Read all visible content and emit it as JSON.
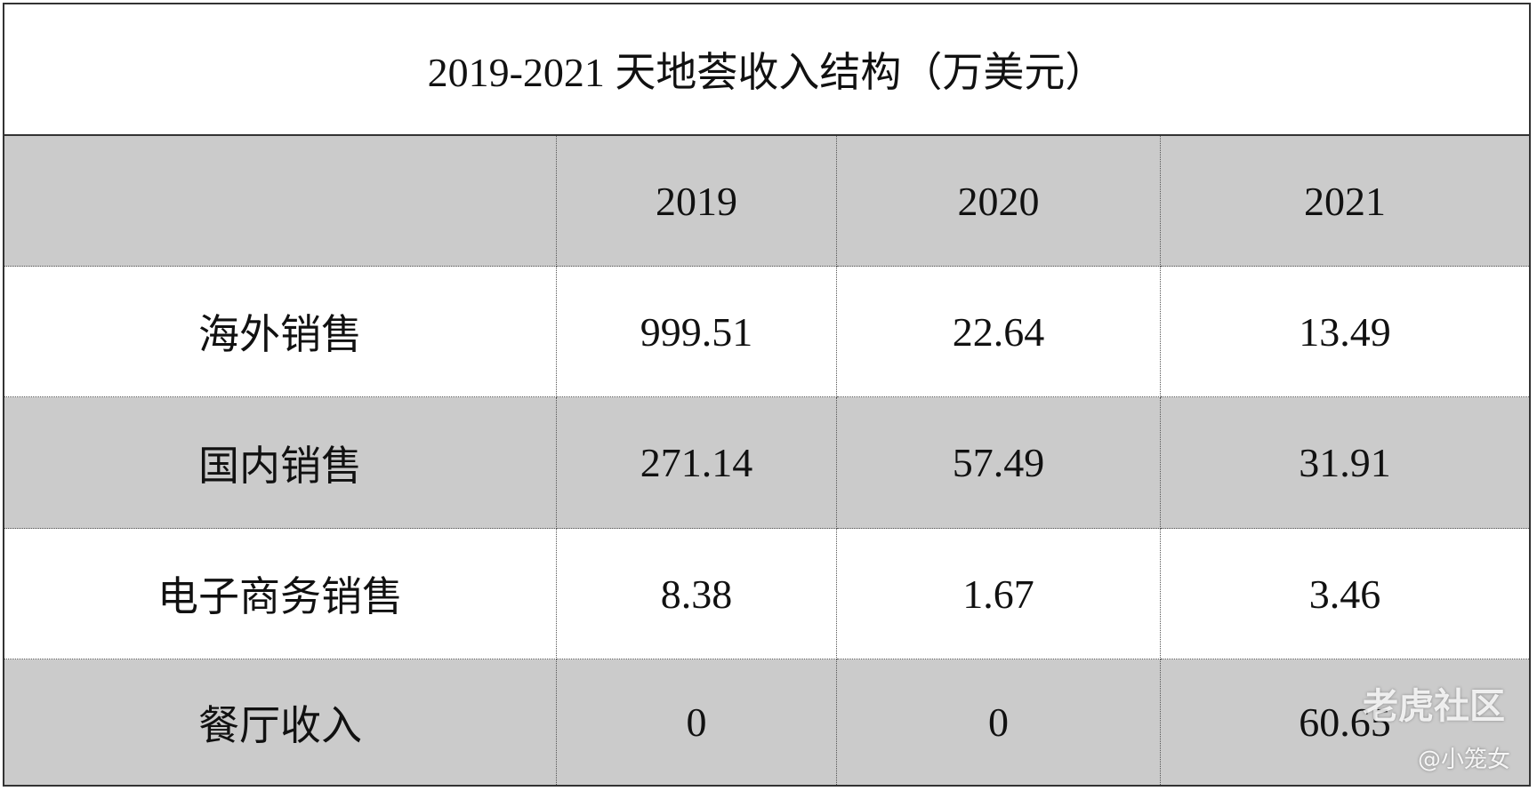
{
  "table": {
    "title": "2019-2021 天地荟收入结构（万美元）",
    "columns": [
      "2019",
      "2020",
      "2021"
    ],
    "rows": [
      {
        "label": "海外销售",
        "values": [
          "999.51",
          "22.64",
          "13.49"
        ]
      },
      {
        "label": "国内销售",
        "values": [
          "271.14",
          "57.49",
          "31.91"
        ]
      },
      {
        "label": "电子商务销售",
        "values": [
          "8.38",
          "1.67",
          "3.46"
        ]
      },
      {
        "label": "餐厅收入",
        "values": [
          "0",
          "0",
          "60.65"
        ]
      }
    ]
  },
  "watermark": {
    "brand": "老虎社区",
    "author": "@小笼女"
  }
}
